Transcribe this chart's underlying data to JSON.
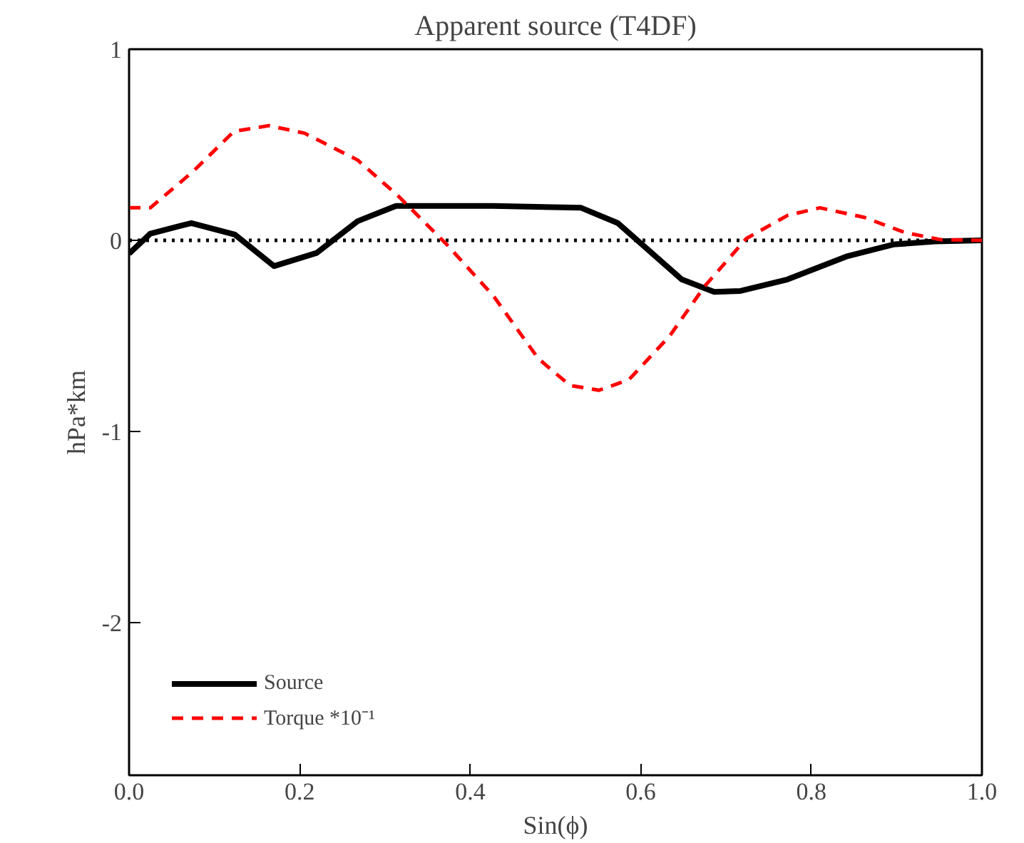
{
  "chart_data": {
    "type": "line",
    "title": "Apparent source (T4DF)",
    "xlabel": "Sin(ϕ)",
    "ylabel": "hPa*km",
    "xlim": [
      0,
      1
    ],
    "xticks": [
      {
        "value": 0,
        "label": "0.0"
      },
      0.2,
      0.4,
      0.6,
      0.8,
      {
        "value": 1,
        "label": "1.0"
      }
    ],
    "ylim": [
      -2.8,
      1
    ],
    "yticks": [
      -2,
      -1,
      0,
      1
    ],
    "grid": false,
    "legend": "bottom left",
    "ref_lines": [
      {
        "axis": "y",
        "value": 0,
        "color": "#000000",
        "line_style": "dotted"
      }
    ],
    "series": [
      {
        "name": "Source",
        "color": "#000000",
        "line_style": "solid",
        "x": [
          0,
          0.025,
          0.073,
          0.124,
          0.17,
          0.22,
          0.268,
          0.313,
          0.427,
          0.53,
          0.573,
          0.648,
          0.686,
          0.717,
          0.772,
          0.841,
          0.896,
          0.945,
          1.0
        ],
        "values": [
          -0.07,
          0.035,
          0.09,
          0.03,
          -0.135,
          -0.066,
          0.1,
          0.18,
          0.18,
          0.17,
          0.09,
          -0.205,
          -0.27,
          -0.265,
          -0.205,
          -0.085,
          -0.022,
          -0.006,
          0
        ]
      },
      {
        "name": "Torque *10⁻¹",
        "color": "#ff0000",
        "line_style": "dashed",
        "x": [
          0,
          0.025,
          0.075,
          0.123,
          0.164,
          0.206,
          0.268,
          0.316,
          0.372,
          0.427,
          0.48,
          0.517,
          0.551,
          0.586,
          0.634,
          0.675,
          0.724,
          0.772,
          0.81,
          0.862,
          0.91,
          0.952,
          1.0
        ],
        "values": [
          0.17,
          0.17,
          0.36,
          0.57,
          0.6,
          0.56,
          0.42,
          0.23,
          -0.02,
          -0.29,
          -0.62,
          -0.76,
          -0.785,
          -0.73,
          -0.5,
          -0.24,
          0.01,
          0.13,
          0.17,
          0.12,
          0.04,
          0.003,
          0
        ]
      }
    ]
  }
}
